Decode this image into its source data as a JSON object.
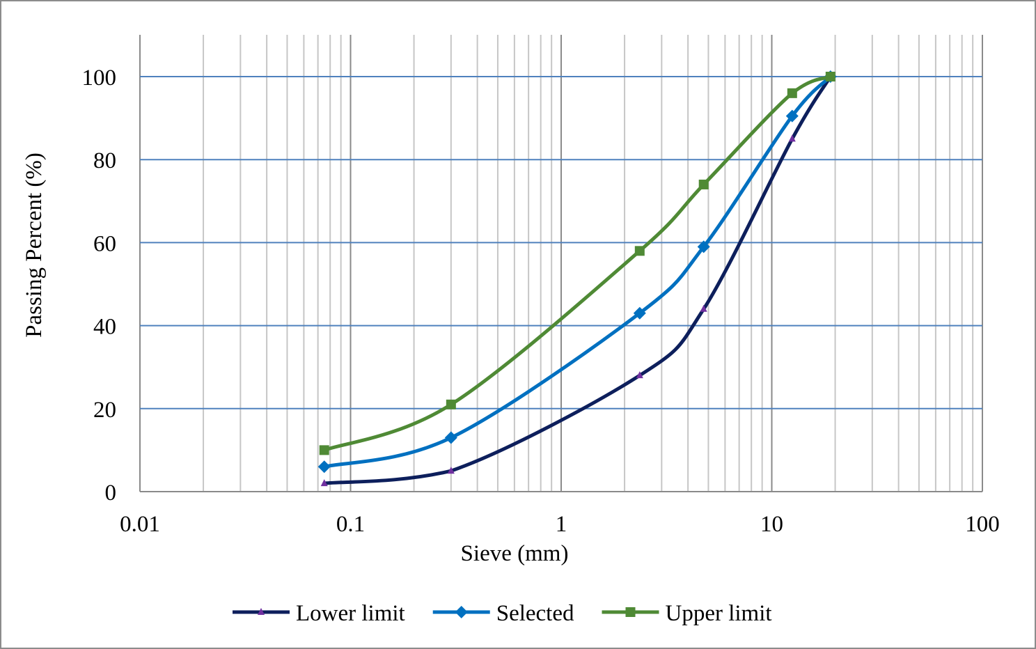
{
  "chart_data": {
    "type": "line",
    "xscale": "log",
    "xlim": [
      0.01,
      100
    ],
    "ylim": [
      0,
      100
    ],
    "xlabel": "Sieve (mm)",
    "ylabel": "Passing Percent (%)",
    "x_ticks": [
      "0.01",
      "0.1",
      "1",
      "10",
      "100"
    ],
    "y_ticks": [
      "0",
      "20",
      "40",
      "60",
      "80",
      "100"
    ],
    "grid": "on",
    "legend_position": "bottom",
    "series": [
      {
        "name": "Lower limit",
        "color": "#0d1f5c",
        "marker": "triangle",
        "marker_color": "#7030a0",
        "x": [
          0.075,
          0.3,
          2.36,
          4.75,
          12.5,
          19
        ],
        "y": [
          2,
          5,
          28,
          44,
          85,
          100
        ]
      },
      {
        "name": "Selected",
        "color": "#0070c0",
        "marker": "diamond",
        "marker_color": "#0070c0",
        "x": [
          0.075,
          0.3,
          2.36,
          4.75,
          12.5,
          19
        ],
        "y": [
          6,
          13,
          43,
          59,
          90.5,
          100
        ]
      },
      {
        "name": "Upper limit",
        "color": "#4f8a35",
        "marker": "square",
        "marker_color": "#4f8a35",
        "x": [
          0.075,
          0.3,
          2.36,
          4.75,
          12.5,
          19
        ],
        "y": [
          10,
          21,
          58,
          74,
          96,
          100
        ]
      }
    ]
  }
}
